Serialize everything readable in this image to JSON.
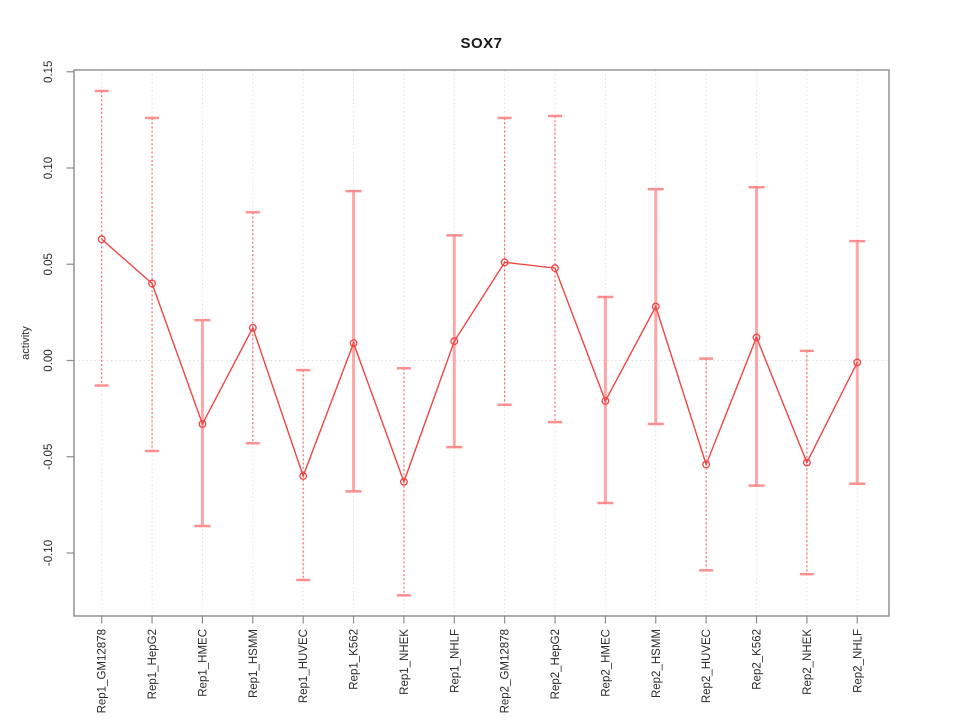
{
  "chart_data": {
    "type": "line",
    "title": "SOX7",
    "ylabel": "activity",
    "xlabel": "",
    "legend": "none",
    "grid": "vertical dotted gridline at every category; horizontal dotted line at y=0 only",
    "ylim": [
      -0.13,
      0.155
    ],
    "yticks": [
      0.15,
      0.1,
      0.05,
      0.0,
      -0.05,
      -0.1
    ],
    "ytick_labels": [
      "0.15",
      "0.10",
      "0.05",
      "0.00",
      "-0.05",
      "-0.10"
    ],
    "categories": [
      "Rep1_GM12878",
      "Rep1_HepG2",
      "Rep1_HMEC",
      "Rep1_HSMM",
      "Rep1_HUVEC",
      "Rep1_K562",
      "Rep1_NHEK",
      "Rep1_NHLF",
      "Rep2_GM12878",
      "Rep2_HepG2",
      "Rep2_HMEC",
      "Rep2_HSMM",
      "Rep2_HUVEC",
      "Rep2_K562",
      "Rep2_NHEK",
      "Rep2_NHLF"
    ],
    "series": [
      {
        "name": "activity",
        "values": [
          0.063,
          0.04,
          -0.033,
          0.017,
          -0.06,
          0.009,
          -0.063,
          0.01,
          0.051,
          0.048,
          -0.021,
          0.028,
          -0.054,
          0.012,
          -0.053,
          -0.001
        ],
        "error_upper": [
          0.14,
          0.126,
          0.021,
          0.077,
          -0.005,
          0.088,
          -0.004,
          0.065,
          0.126,
          0.127,
          0.033,
          0.089,
          0.001,
          0.09,
          0.005,
          0.062
        ],
        "error_lower": [
          -0.013,
          -0.047,
          -0.086,
          -0.043,
          -0.114,
          -0.068,
          -0.122,
          -0.045,
          -0.023,
          -0.032,
          -0.074,
          -0.033,
          -0.109,
          -0.065,
          -0.111,
          -0.064
        ]
      }
    ],
    "thick_error_bars": [
      2,
      5,
      7,
      10,
      11,
      13,
      15
    ],
    "colors": {
      "line": "#f04545",
      "point": "#f04545",
      "error_bar_thin": "#f25252",
      "error_bar_thick": "#ffa3a3",
      "error_cap": "#ff8a8a",
      "box": "#8c8c8c",
      "tick": "#8c8c8c",
      "gridline": "#dcdcdc",
      "zero_line": "#e0e0e0",
      "text": "#2b2b2b"
    }
  }
}
